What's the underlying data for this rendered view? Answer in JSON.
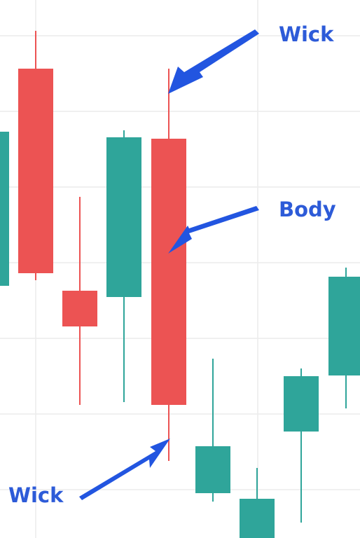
{
  "labels": {
    "wick_top": "Wick",
    "body": "Body",
    "wick_bottom": "Wick"
  },
  "colors": {
    "bullish": "#2fa59a",
    "bearish": "#ec5353",
    "annotation": "#2d5bd8",
    "arrow": "#2255e0",
    "grid": "#ececec",
    "background": "#ffffff"
  },
  "chart_data": {
    "type": "candlestick",
    "title": "",
    "xlabel": "",
    "ylabel": "",
    "grid": true,
    "ylim": [
      0,
      768
    ],
    "candles": [
      {
        "direction": "bullish",
        "open": 360,
        "close": 580,
        "high": 580,
        "low": 360
      },
      {
        "direction": "bearish",
        "open": 670,
        "close": 378,
        "high": 724,
        "low": 368
      },
      {
        "direction": "bearish",
        "open": 353,
        "close": 302,
        "high": 487,
        "low": 190
      },
      {
        "direction": "bullish",
        "open": 344,
        "close": 572,
        "high": 582,
        "low": 194
      },
      {
        "direction": "bearish",
        "open": 570,
        "close": 190,
        "high": 670,
        "low": 110
      },
      {
        "direction": "bullish",
        "open": 64,
        "close": 131,
        "high": 256,
        "low": 52
      },
      {
        "direction": "bullish",
        "open": 0,
        "close": 56,
        "high": 100,
        "low": 0
      },
      {
        "direction": "bullish",
        "open": 152,
        "close": 231,
        "high": 242,
        "low": 22
      },
      {
        "direction": "bullish",
        "open": 232,
        "close": 373,
        "high": 386,
        "low": 185
      }
    ]
  }
}
